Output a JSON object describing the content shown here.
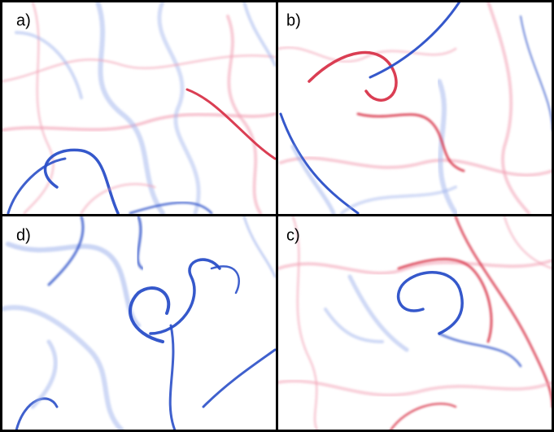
{
  "panels": [
    {
      "label": "a)"
    },
    {
      "label": "b)"
    },
    {
      "label": "d)"
    },
    {
      "label": "c)"
    }
  ]
}
